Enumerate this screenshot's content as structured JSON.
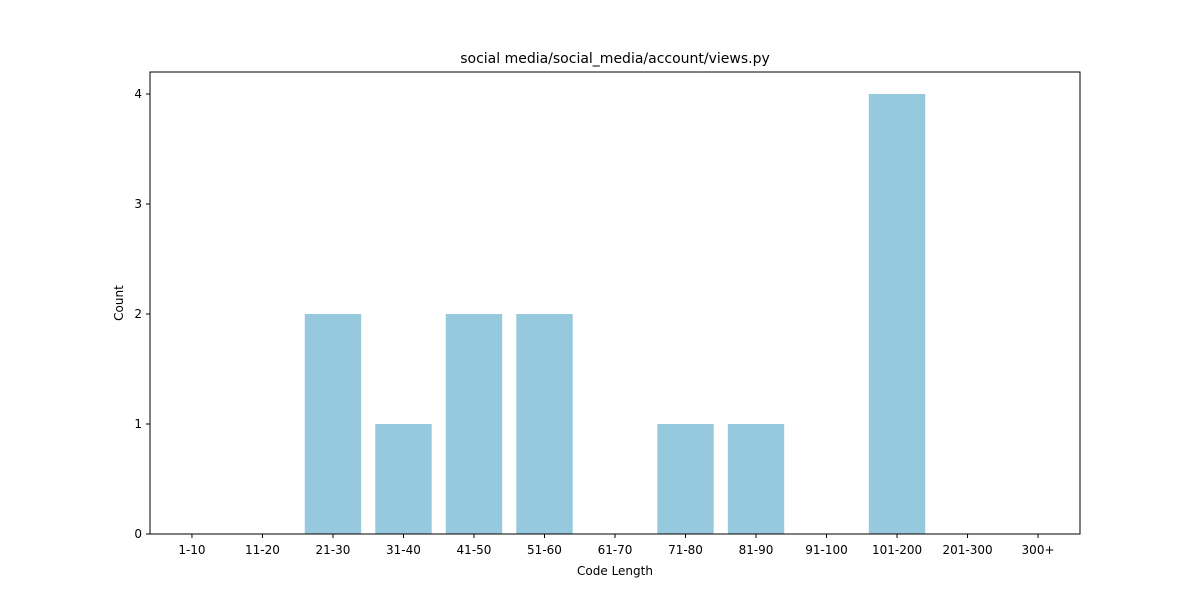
{
  "chart_data": {
    "type": "bar",
    "title": "social media/social_media/account/views.py",
    "xlabel": "Code Length",
    "ylabel": "Count",
    "categories": [
      "1-10",
      "11-20",
      "21-30",
      "31-40",
      "41-50",
      "51-60",
      "61-70",
      "71-80",
      "81-90",
      "91-100",
      "101-200",
      "201-300",
      "300+"
    ],
    "values": [
      0,
      0,
      2,
      1,
      2,
      2,
      0,
      1,
      1,
      0,
      4,
      0,
      0
    ],
    "yticks": [
      "0",
      "1",
      "2",
      "3",
      "4"
    ],
    "ylim": [
      0,
      4.2
    ],
    "grid": false,
    "bar_color": "#96c9dd"
  }
}
